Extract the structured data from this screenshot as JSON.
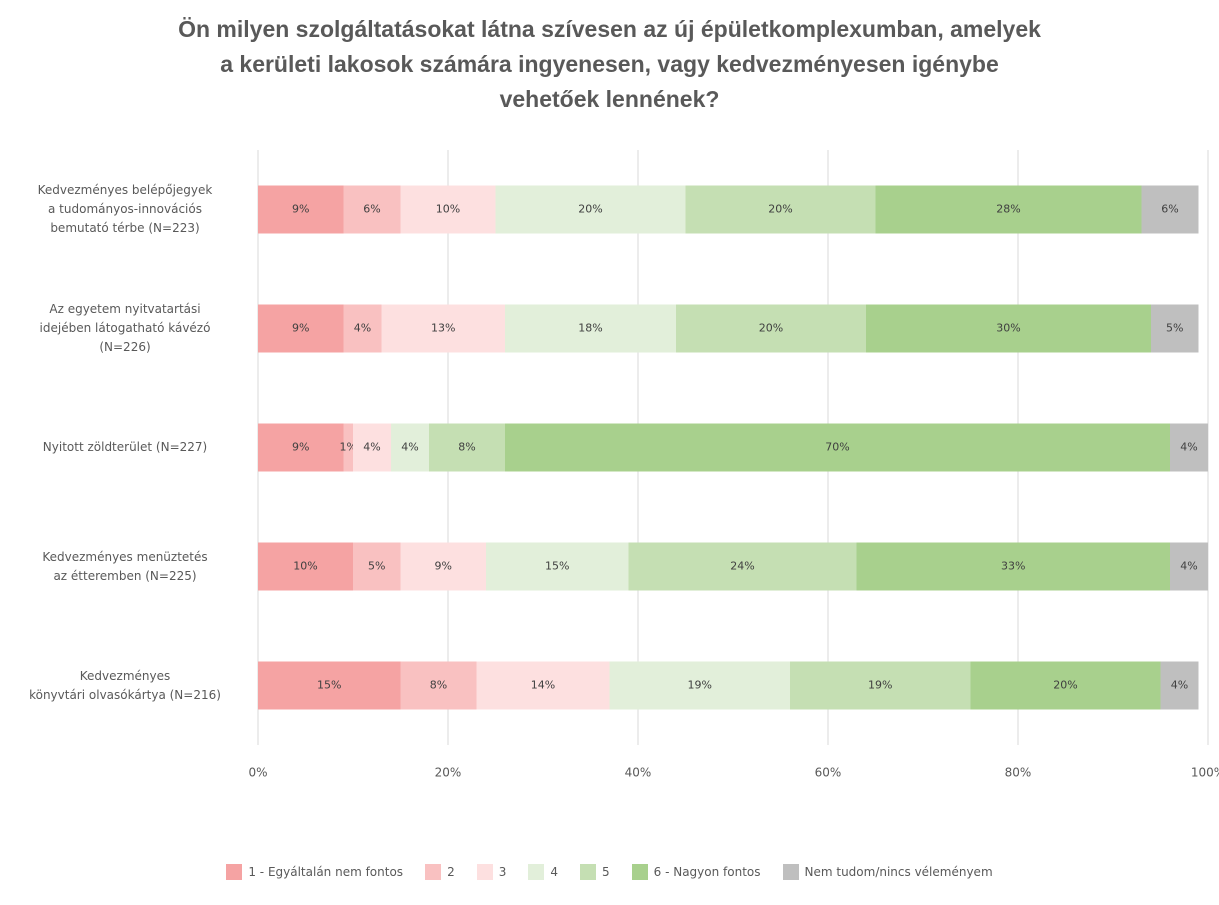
{
  "chart_data": {
    "type": "stacked-barh",
    "title": "Ön milyen szolgáltatásokat látna szívesen az új épületkomplexumban, amelyek\na kerületi lakosok számára ingyenesen, vagy kedvezményesen igénybe\nvehetőek lennének?",
    "categories": [
      "Kedvezményes belépőjegyek\na tudományos-innovációs\nbemutató térbe (N=223)",
      "Az egyetem nyitvatartási\nidejében látogatható kávézó\n(N=226)",
      "Nyitott zöldterület (N=227)",
      "Kedvezményes menüztetés\naz étteremben (N=225)",
      "Kedvezményes\nkönyvtári olvasókártya (N=216)"
    ],
    "series": [
      {
        "name": "1 - Egyáltalán nem fontos",
        "color": "#f5a3a3",
        "values": [
          9,
          9,
          9,
          10,
          15
        ],
        "value_labels": [
          "9%",
          "9%",
          "9%",
          "10%",
          "15%"
        ]
      },
      {
        "name": "2",
        "color": "#f9c1c1",
        "values": [
          6,
          4,
          1,
          5,
          8
        ],
        "value_labels": [
          "6%",
          "4%",
          "1%",
          "5%",
          "8%"
        ]
      },
      {
        "name": "3",
        "color": "#fde0e0",
        "values": [
          10,
          13,
          4,
          9,
          14
        ],
        "value_labels": [
          "10%",
          "13%",
          "4%",
          "9%",
          "14%"
        ]
      },
      {
        "name": "4",
        "color": "#e2efda",
        "values": [
          20,
          18,
          4,
          15,
          19
        ],
        "value_labels": [
          "20%",
          "18%",
          "4%",
          "15%",
          "19%"
        ]
      },
      {
        "name": "5",
        "color": "#c5dfb3",
        "values": [
          20,
          20,
          8,
          24,
          19
        ],
        "value_labels": [
          "20%",
          "20%",
          "8%",
          "24%",
          "19%"
        ]
      },
      {
        "name": "6 - Nagyon fontos",
        "color": "#a8d08d",
        "values": [
          28,
          30,
          70,
          33,
          20
        ],
        "value_labels": [
          "28%",
          "30%",
          "70%",
          "33%",
          "20%"
        ]
      },
      {
        "name": "Nem tudom/nincs véleményem",
        "color": "#bfbfbf",
        "values": [
          6,
          5,
          4,
          4,
          4
        ],
        "value_labels": [
          "6%",
          "5%",
          "4%",
          "4%",
          "4%"
        ]
      }
    ],
    "xlim": [
      0,
      100
    ],
    "xticks": [
      {
        "value": 0,
        "label": "0%"
      },
      {
        "value": 20,
        "label": "20%"
      },
      {
        "value": 40,
        "label": "40%"
      },
      {
        "value": 60,
        "label": "60%"
      },
      {
        "value": 80,
        "label": "80%"
      },
      {
        "value": 100,
        "label": "100%"
      }
    ],
    "grid": true,
    "legend": "bottom"
  }
}
